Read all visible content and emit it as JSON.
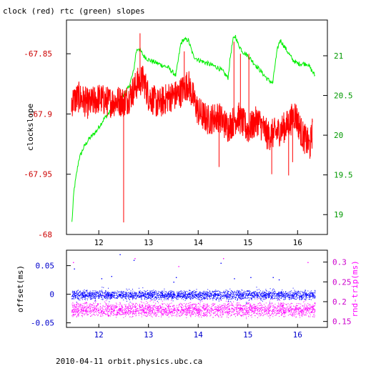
{
  "title": "clock (red) rtc (green) slopes",
  "footer": "2010-04-11 orbit.physics.ubc.ca",
  "chart_data": [
    {
      "type": "line",
      "ylabel": "clockslope",
      "xlim": [
        11.35,
        16.6
      ],
      "ylim": [
        -68.0,
        -67.822
      ],
      "y2lim": [
        18.75,
        21.45
      ],
      "xticks": [
        12,
        13,
        14,
        15,
        16
      ],
      "yticks": [
        -68,
        -67.95,
        -67.9,
        -67.85
      ],
      "ytick_labels": [
        "-68",
        "-67.95",
        "-67.9",
        "-67.85"
      ],
      "y2ticks": [
        19,
        19.5,
        20,
        20.5,
        21
      ],
      "y2tick_labels": [
        "19",
        "19.5",
        "20",
        "20.5",
        "21"
      ],
      "series": [
        {
          "color": "#ff0000",
          "axis": "left",
          "x": [
            11.45,
            11.6,
            11.8,
            12.0,
            12.2,
            12.4,
            12.5,
            12.6,
            12.8,
            12.9,
            13.0,
            13.2,
            13.4,
            13.6,
            13.8,
            14.0,
            14.2,
            14.4,
            14.6,
            14.8,
            15.0,
            15.2,
            15.4,
            15.6,
            15.8,
            15.95,
            16.1,
            16.25,
            16.3
          ],
          "values": [
            -67.89,
            -67.886,
            -67.892,
            -67.887,
            -67.89,
            -67.889,
            -67.89,
            -67.887,
            -67.873,
            -67.872,
            -67.885,
            -67.892,
            -67.886,
            -67.884,
            -67.875,
            -67.898,
            -67.905,
            -67.902,
            -67.911,
            -67.902,
            -67.913,
            -67.905,
            -67.918,
            -67.915,
            -67.909,
            -67.9,
            -67.918,
            -67.927,
            -67.914
          ],
          "spikes": [
            {
              "x": 12.5,
              "value": -67.99
            },
            {
              "x": 12.83,
              "value": -67.833
            },
            {
              "x": 12.88,
              "value": -67.86
            },
            {
              "x": 13.72,
              "value": -67.848
            },
            {
              "x": 14.42,
              "value": -67.944
            },
            {
              "x": 14.72,
              "value": -67.84
            },
            {
              "x": 14.85,
              "value": -67.85
            },
            {
              "x": 15.02,
              "value": -67.85
            },
            {
              "x": 15.48,
              "value": -67.95
            },
            {
              "x": 15.82,
              "value": -67.951
            },
            {
              "x": 15.9,
              "value": -67.94
            }
          ]
        },
        {
          "color": "#00ee00",
          "axis": "right",
          "x": [
            11.46,
            11.5,
            11.55,
            11.6,
            11.7,
            11.8,
            11.95,
            12.1,
            12.3,
            12.5,
            12.6,
            12.7,
            12.75,
            12.8,
            12.9,
            13.0,
            13.2,
            13.4,
            13.55,
            13.6,
            13.65,
            13.7,
            13.8,
            13.9,
            14.0,
            14.2,
            14.4,
            14.5,
            14.6,
            14.65,
            14.7,
            14.75,
            14.8,
            14.9,
            15.0,
            15.2,
            15.4,
            15.45,
            15.5,
            15.55,
            15.6,
            15.65,
            15.7,
            15.8,
            15.9,
            16.0,
            16.2,
            16.35
          ],
          "values": [
            18.9,
            19.3,
            19.5,
            19.7,
            19.85,
            19.95,
            20.05,
            20.2,
            20.35,
            20.5,
            20.6,
            20.8,
            21.05,
            21.1,
            21.0,
            20.95,
            20.9,
            20.85,
            20.75,
            20.95,
            21.15,
            21.2,
            21.2,
            21.0,
            20.95,
            20.9,
            20.85,
            20.8,
            20.72,
            21.0,
            21.2,
            21.25,
            21.15,
            21.05,
            21.0,
            20.85,
            20.7,
            20.68,
            20.65,
            20.9,
            21.1,
            21.2,
            21.15,
            21.05,
            20.95,
            20.9,
            20.9,
            20.75
          ]
        }
      ]
    },
    {
      "type": "scatter",
      "ylabel": "offset(ms)",
      "y2label": "rnd-trip(ms)",
      "xlim": [
        11.35,
        16.6
      ],
      "ylim": [
        -0.058,
        0.077
      ],
      "y2lim": [
        0.135,
        0.33
      ],
      "xticks": [
        12,
        13,
        14,
        15,
        16
      ],
      "yticks": [
        -0.05,
        0,
        0.05
      ],
      "ytick_labels": [
        "-0.05",
        "0",
        "0.05"
      ],
      "y2ticks": [
        0.15,
        0.2,
        0.25,
        0.3
      ],
      "y2tick_labels": [
        "0.15",
        "0.2",
        "0.25",
        "0.3"
      ],
      "series": [
        {
          "color": "#0000ff",
          "axis": "left",
          "x_range": [
            11.45,
            16.35
          ],
          "band": [
            -0.01,
            0.008
          ]
        },
        {
          "color": "#ff00ff",
          "axis": "right",
          "x_range": [
            11.45,
            16.35
          ],
          "band": [
            0.16,
            0.2
          ]
        }
      ],
      "outliers": [
        {
          "x": 11.5,
          "value": 0.045,
          "color": "#0000ff"
        },
        {
          "x": 11.48,
          "value": 0.3,
          "color": "#ff00ff"
        },
        {
          "x": 12.05,
          "value": 0.028,
          "color": "#0000ff"
        },
        {
          "x": 12.25,
          "value": 0.032,
          "color": "#0000ff"
        },
        {
          "x": 12.42,
          "value": 0.07,
          "color": "#0000ff"
        },
        {
          "x": 12.7,
          "value": 0.06,
          "color": "#0000ff"
        },
        {
          "x": 12.72,
          "value": 0.31,
          "color": "#ff00ff"
        },
        {
          "x": 13.5,
          "value": 0.022,
          "color": "#0000ff"
        },
        {
          "x": 13.55,
          "value": 0.03,
          "color": "#0000ff"
        },
        {
          "x": 13.6,
          "value": 0.29,
          "color": "#ff00ff"
        },
        {
          "x": 14.45,
          "value": 0.055,
          "color": "#0000ff"
        },
        {
          "x": 14.5,
          "value": 0.31,
          "color": "#ff00ff"
        },
        {
          "x": 14.72,
          "value": 0.028,
          "color": "#0000ff"
        },
        {
          "x": 15.05,
          "value": 0.03,
          "color": "#0000ff"
        },
        {
          "x": 15.5,
          "value": 0.03,
          "color": "#0000ff"
        },
        {
          "x": 15.62,
          "value": 0.026,
          "color": "#0000ff"
        },
        {
          "x": 16.2,
          "value": 0.3,
          "color": "#ff00ff"
        }
      ]
    }
  ]
}
